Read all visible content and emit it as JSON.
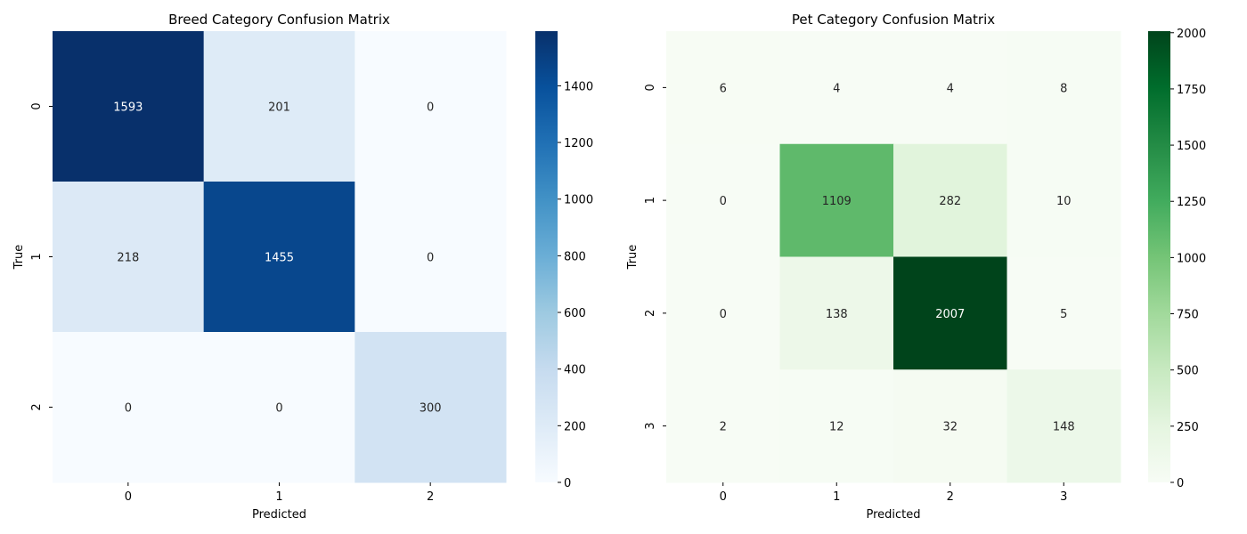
{
  "chart_data": [
    {
      "type": "heatmap",
      "title": "Breed Category Confusion Matrix",
      "xlabel": "Predicted",
      "ylabel": "True",
      "x_categories": [
        "0",
        "1",
        "2"
      ],
      "y_categories": [
        "0",
        "1",
        "2"
      ],
      "values": [
        [
          1593,
          201,
          0
        ],
        [
          218,
          1455,
          0
        ],
        [
          0,
          0,
          300
        ]
      ],
      "colormap": "blues",
      "colorbar": {
        "range": [
          0,
          1593
        ],
        "ticks": [
          0,
          200,
          400,
          600,
          800,
          1000,
          1200,
          1400
        ]
      },
      "legend": "colorbar-right"
    },
    {
      "type": "heatmap",
      "title": "Pet Category Confusion Matrix",
      "xlabel": "Predicted",
      "ylabel": "True",
      "x_categories": [
        "0",
        "1",
        "2",
        "3"
      ],
      "y_categories": [
        "0",
        "1",
        "2",
        "3"
      ],
      "values": [
        [
          6,
          4,
          4,
          8
        ],
        [
          0,
          1109,
          282,
          10
        ],
        [
          0,
          138,
          2007,
          5
        ],
        [
          2,
          12,
          32,
          148
        ]
      ],
      "colormap": "greens",
      "colorbar": {
        "range": [
          0,
          2007
        ],
        "ticks": [
          0,
          250,
          500,
          750,
          1000,
          1250,
          1500,
          1750,
          2000
        ]
      },
      "legend": "colorbar-right"
    }
  ],
  "colors": {
    "blues_low": "#f7fbff",
    "blues_high": "#08306b",
    "greens_low": "#f7fcf5",
    "greens_high": "#00441b"
  }
}
